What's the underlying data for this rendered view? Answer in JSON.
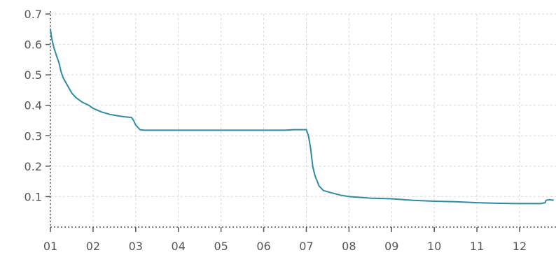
{
  "chart_data": {
    "type": "line",
    "title": "",
    "xlabel": "",
    "ylabel": "",
    "x_ticks": [
      "01",
      "02",
      "03",
      "04",
      "05",
      "06",
      "07",
      "08",
      "09",
      "10",
      "11",
      "12"
    ],
    "y_ticks": [
      "0.1",
      "0.2",
      "0.3",
      "0.4",
      "0.5",
      "0.6",
      "0.7"
    ],
    "xlim": [
      1,
      12.8
    ],
    "ylim": [
      0,
      0.7
    ],
    "grid": true,
    "series": [
      {
        "color": "#2e8ba3",
        "x": [
          1.0,
          1.03,
          1.08,
          1.15,
          1.2,
          1.25,
          1.3,
          1.4,
          1.5,
          1.6,
          1.75,
          1.9,
          2.0,
          2.2,
          2.4,
          2.6,
          2.75,
          2.9,
          2.95,
          3.0,
          3.1,
          3.2,
          3.3,
          3.5,
          3.8,
          4.0,
          4.5,
          5.0,
          5.5,
          6.0,
          6.5,
          6.7,
          7.0,
          7.05,
          7.1,
          7.15,
          7.2,
          7.3,
          7.4,
          7.6,
          7.8,
          8.0,
          8.2,
          8.5,
          9.0,
          9.5,
          10.0,
          10.5,
          11.0,
          11.5,
          12.0,
          12.5,
          12.6,
          12.62,
          12.7,
          12.8
        ],
        "y": [
          0.65,
          0.62,
          0.59,
          0.56,
          0.54,
          0.51,
          0.49,
          0.465,
          0.44,
          0.425,
          0.41,
          0.4,
          0.39,
          0.378,
          0.37,
          0.365,
          0.362,
          0.36,
          0.35,
          0.335,
          0.32,
          0.318,
          0.318,
          0.318,
          0.318,
          0.318,
          0.318,
          0.318,
          0.318,
          0.318,
          0.318,
          0.32,
          0.32,
          0.3,
          0.26,
          0.2,
          0.17,
          0.135,
          0.12,
          0.112,
          0.105,
          0.1,
          0.098,
          0.095,
          0.093,
          0.088,
          0.085,
          0.083,
          0.08,
          0.078,
          0.077,
          0.077,
          0.08,
          0.088,
          0.09,
          0.088
        ]
      }
    ]
  }
}
